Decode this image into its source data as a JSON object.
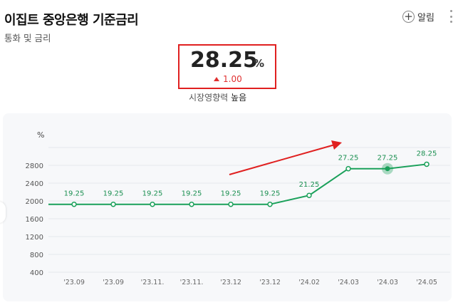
{
  "header": {
    "title": "이집트 중앙은행 기준금리",
    "subtitle": "통화 및 금리",
    "alarm_label": "알림"
  },
  "summary": {
    "value": "28.25",
    "unit": "%",
    "change": "1.00",
    "impact_label": "시장영향력",
    "impact_level": "높음"
  },
  "chart_data": {
    "type": "line",
    "ylabel": "%",
    "ylim": [
      400,
      3200
    ],
    "yticks": [
      "400",
      "800",
      "1200",
      "1600",
      "2000",
      "2400",
      "2800"
    ],
    "categories": [
      "'23.09",
      "'23.09",
      "'23.11.",
      "'23.11.",
      "'23.12",
      "'23.12",
      "'24.02",
      "'24.03",
      "'24.03",
      "'24.05"
    ],
    "values": [
      1925,
      1925,
      1925,
      1925,
      1925,
      1925,
      2125,
      2725,
      2725,
      2825
    ],
    "labels": [
      "19.25",
      "19.25",
      "19.25",
      "19.25",
      "19.25",
      "19.25",
      "21.25",
      "27.25",
      "27.25",
      "28.25"
    ],
    "highlight_index": 8,
    "line_color": "#1aa05a",
    "grid": true
  }
}
